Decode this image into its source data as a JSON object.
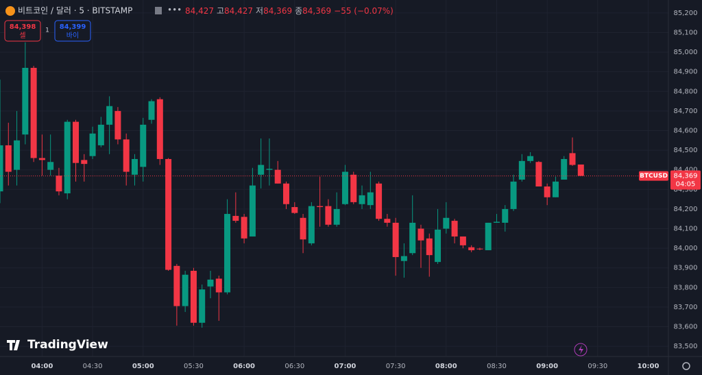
{
  "header": {
    "symbol": "비트코인 / 달러 · 5 · BITSTAMP",
    "open": "84,427",
    "high_label": "고",
    "high": "84,427",
    "low_label": "저",
    "low": "84,369",
    "close_label": "종",
    "close": "84,369",
    "change": "−55 (−0.07%)"
  },
  "trade": {
    "sell_price": "84,398",
    "sell_label": "셀",
    "quantity": "1",
    "buy_price": "84,399",
    "buy_label": "바이"
  },
  "branding": "TradingView",
  "chart_data": {
    "type": "candlestick",
    "up_color": "#089981",
    "down_color": "#f23645",
    "x": [
      "03:35",
      "03:40",
      "03:45",
      "03:50",
      "03:55",
      "04:00",
      "04:05",
      "04:10",
      "04:15",
      "04:20",
      "04:25",
      "04:30",
      "04:35",
      "04:40",
      "04:45",
      "04:50",
      "04:55",
      "05:00",
      "05:05",
      "05:10",
      "05:15",
      "05:20",
      "05:25",
      "05:30",
      "05:35",
      "05:40",
      "05:45",
      "05:50",
      "05:55",
      "06:00",
      "06:05",
      "06:10",
      "06:15",
      "06:20",
      "06:25",
      "06:30",
      "06:35",
      "06:40",
      "06:45",
      "06:50",
      "06:55",
      "07:00",
      "07:05",
      "07:10",
      "07:15",
      "07:20",
      "07:25",
      "07:30",
      "07:35",
      "07:40",
      "07:45",
      "07:50",
      "07:55",
      "08:00",
      "08:05",
      "08:10",
      "08:15",
      "08:20",
      "08:25",
      "08:30",
      "08:35",
      "08:40",
      "08:45",
      "08:50",
      "08:55",
      "09:00",
      "09:05",
      "09:10",
      "09:15",
      "09:20"
    ],
    "open": [
      84290,
      84525,
      84400,
      84580,
      84920,
      84460,
      84400,
      84370,
      84280,
      84645,
      84450,
      84470,
      84525,
      84630,
      84700,
      84555,
      84375,
      84415,
      84655,
      84760,
      84455,
      83910,
      83705,
      83885,
      83620,
      83805,
      83845,
      83775,
      84165,
      84160,
      84060,
      84375,
      84400,
      84400,
      84330,
      84210,
      84155,
      84025,
      84215,
      84215,
      84120,
      84225,
      84375,
      84225,
      84220,
      84330,
      84150,
      84130,
      83935,
      83975,
      84100,
      84050,
      83930,
      84100,
      84140,
      84060,
      84005,
      83998,
      83990,
      84130,
      84130,
      84200,
      84350,
      84445,
      84440,
      84315,
      84260,
      84350,
      84485,
      84427
    ],
    "high": [
      84860,
      84640,
      84700,
      85050,
      84930,
      84580,
      84580,
      84410,
      84655,
      84655,
      84480,
      84620,
      84670,
      84775,
      84720,
      84585,
      84480,
      84665,
      84760,
      84770,
      84460,
      83920,
      83885,
      83900,
      83815,
      83885,
      83860,
      84250,
      84285,
      84175,
      84410,
      84560,
      84560,
      84445,
      84340,
      84235,
      84175,
      84235,
      84365,
      84250,
      84285,
      84425,
      84390,
      84320,
      84390,
      84340,
      84175,
      84155,
      84025,
      84270,
      84120,
      84075,
      84200,
      84235,
      84150,
      84060,
      84015,
      84003,
      84130,
      84175,
      84220,
      84375,
      84480,
      84490,
      84445,
      84330,
      84365,
      84470,
      84565,
      84427
    ],
    "low": [
      84230,
      84320,
      84320,
      84530,
      84440,
      84370,
      84370,
      84270,
      84250,
      84340,
      84340,
      84455,
      84515,
      84480,
      84530,
      84320,
      84320,
      84340,
      84635,
      84425,
      83885,
      83605,
      83675,
      83605,
      83595,
      83745,
      83630,
      83765,
      84130,
      84025,
      84060,
      84305,
      84320,
      84330,
      84200,
      84175,
      83975,
      84015,
      84110,
      84110,
      84110,
      84220,
      84225,
      84200,
      84200,
      84140,
      84110,
      83860,
      83850,
      83965,
      83900,
      83855,
      83920,
      84075,
      84025,
      84000,
      83980,
      83990,
      83990,
      84130,
      84085,
      84190,
      84340,
      84435,
      84315,
      84220,
      84260,
      84350,
      84420,
      84369
    ],
    "close": [
      84525,
      84390,
      84550,
      84920,
      84460,
      84450,
      84440,
      84290,
      84645,
      84435,
      84430,
      84585,
      84630,
      84725,
      84555,
      84390,
      84455,
      84630,
      84750,
      84455,
      83890,
      83705,
      83865,
      83620,
      83790,
      83840,
      83775,
      84175,
      84140,
      84050,
      84320,
      84425,
      84405,
      84330,
      84225,
      84180,
      84045,
      84215,
      84210,
      84120,
      84200,
      84390,
      84235,
      84270,
      84285,
      84150,
      84130,
      83955,
      83960,
      84130,
      84040,
      83965,
      84095,
      84155,
      84060,
      84015,
      83990,
      83995,
      84130,
      84135,
      84200,
      84340,
      84445,
      84470,
      84315,
      84260,
      84340,
      84455,
      84425,
      84369
    ],
    "xlim": [
      "03:35",
      "10:12"
    ],
    "xticks": [
      "04:00",
      "04:30",
      "05:00",
      "05:30",
      "06:00",
      "06:30",
      "07:00",
      "07:30",
      "08:00",
      "08:30",
      "09:00",
      "09:30",
      "10:00"
    ],
    "ylim": [
      83448,
      85266
    ],
    "yticks": [
      {
        "value": 83500,
        "label": "83,500"
      },
      {
        "value": 83600,
        "label": "83,600"
      },
      {
        "value": 83700,
        "label": "83,700"
      },
      {
        "value": 83800,
        "label": "83,800"
      },
      {
        "value": 83900,
        "label": "83,900"
      },
      {
        "value": 84000,
        "label": "84,000"
      },
      {
        "value": 84100,
        "label": "84,100"
      },
      {
        "value": 84200,
        "label": "84,200"
      },
      {
        "value": 84300,
        "label": "84,300"
      },
      {
        "value": 84400,
        "label": "84,400"
      },
      {
        "value": 84500,
        "label": "84,500"
      },
      {
        "value": 84600,
        "label": "84,600"
      },
      {
        "value": 84700,
        "label": "84,700"
      },
      {
        "value": 84800,
        "label": "84,800"
      },
      {
        "value": 84900,
        "label": "84,900"
      },
      {
        "value": 85000,
        "label": "85,000"
      },
      {
        "value": 85100,
        "label": "85,100"
      },
      {
        "value": 85200,
        "label": "85,200"
      }
    ],
    "grid": true,
    "last_price": {
      "value": 84369,
      "label": "84,369"
    },
    "price_tag": "BTCUSD",
    "countdown": "04:05"
  }
}
